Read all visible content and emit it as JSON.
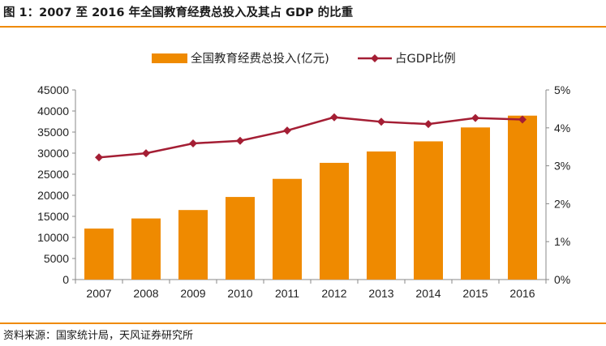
{
  "header": {
    "title": "图 1：2007 至 2016 年全国教育经费总投入及其占 GDP 的比重"
  },
  "footer": {
    "source": "资料来源：国家统计局，天风证券研究所"
  },
  "colors": {
    "bar": "#ef8a00",
    "line": "#a41e34",
    "rule": "#ef8a00",
    "axis": "#888888"
  },
  "chart_data": {
    "type": "bar",
    "categories": [
      "2007",
      "2008",
      "2009",
      "2010",
      "2011",
      "2012",
      "2013",
      "2014",
      "2015",
      "2016"
    ],
    "series": [
      {
        "name": "全国教育经费总投入(亿元)",
        "type": "bar",
        "axis": "left",
        "values": [
          12100,
          14500,
          16500,
          19600,
          23900,
          27700,
          30400,
          32800,
          36100,
          38900
        ]
      },
      {
        "name": "占GDP比例",
        "type": "line",
        "axis": "right",
        "values": [
          3.22,
          3.33,
          3.59,
          3.66,
          3.93,
          4.28,
          4.16,
          4.1,
          4.26,
          4.22
        ]
      }
    ],
    "y_left": {
      "ylim": [
        0,
        45000
      ],
      "ticks": [
        "0",
        "5000",
        "10000",
        "15000",
        "20000",
        "25000",
        "30000",
        "35000",
        "40000",
        "45000"
      ]
    },
    "y_right": {
      "ylim": [
        0,
        5
      ],
      "unit": "%",
      "ticks": [
        "0%",
        "1%",
        "2%",
        "3%",
        "4%",
        "5%"
      ]
    },
    "grid": false,
    "legend": "top-center"
  }
}
